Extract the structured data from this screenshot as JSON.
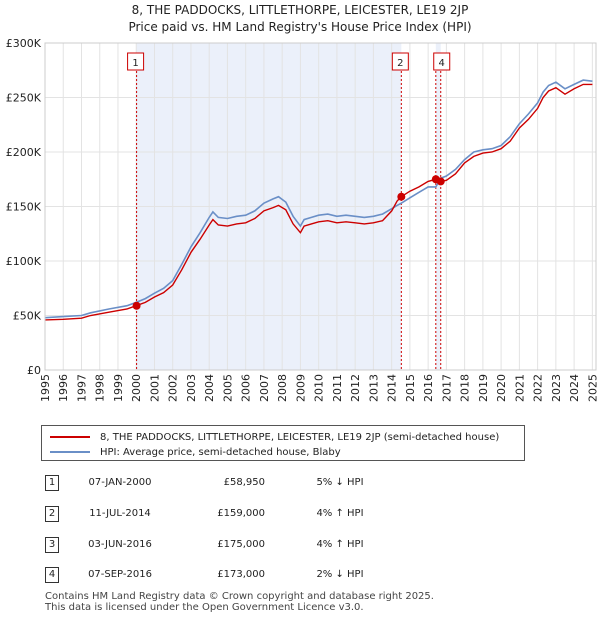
{
  "title_line1": "8, THE PADDOCKS, LITTLETHORPE, LEICESTER, LE19 2JP",
  "title_line2": "Price paid vs. HM Land Registry's House Price Index (HPI)",
  "chart_data": {
    "type": "line",
    "title": "8, THE PADDOCKS, LITTLETHORPE, LEICESTER, LE19 2JP — Price paid vs. HM Land Registry's House Price Index (HPI)",
    "xlabel": "",
    "ylabel": "",
    "xlim": [
      1995,
      2025.2
    ],
    "ylim": [
      0,
      300000
    ],
    "x_ticks": [
      1995,
      1996,
      1997,
      1998,
      1999,
      2000,
      2001,
      2002,
      2003,
      2004,
      2005,
      2006,
      2007,
      2008,
      2009,
      2010,
      2011,
      2012,
      2013,
      2014,
      2015,
      2016,
      2017,
      2018,
      2019,
      2020,
      2021,
      2022,
      2023,
      2024,
      2025
    ],
    "y_ticks": [
      0,
      50000,
      100000,
      150000,
      200000,
      250000,
      300000
    ],
    "y_tick_labels": [
      "£0",
      "£50K",
      "£100K",
      "£150K",
      "£200K",
      "£250K",
      "£300K"
    ],
    "grid": true,
    "shaded_ranges": [
      [
        2000.02,
        2014.53
      ],
      [
        2016.42,
        2016.69
      ]
    ],
    "series": [
      {
        "name": "8, THE PADDOCKS, LITTLETHORPE, LEICESTER, LE19 2JP (semi-detached house)",
        "color": "#cc0000",
        "x": [
          1995.0,
          1996.0,
          1997.0,
          1997.5,
          1998.5,
          1999.5,
          2000.0,
          2000.5,
          2001.0,
          2001.5,
          2002.0,
          2002.5,
          2003.0,
          2003.5,
          2004.0,
          2004.2,
          2004.5,
          2005.0,
          2005.5,
          2006.0,
          2006.5,
          2007.0,
          2007.5,
          2007.8,
          2008.2,
          2008.6,
          2009.0,
          2009.2,
          2009.6,
          2010.0,
          2010.5,
          2011.0,
          2011.5,
          2012.0,
          2012.5,
          2013.0,
          2013.5,
          2014.0,
          2014.3,
          2014.53,
          2015.0,
          2015.5,
          2016.0,
          2016.42,
          2016.69,
          2017.0,
          2017.5,
          2018.0,
          2018.5,
          2019.0,
          2019.5,
          2020.0,
          2020.5,
          2021.0,
          2021.5,
          2022.0,
          2022.3,
          2022.6,
          2023.0,
          2023.5,
          2024.0,
          2024.5,
          2025.0
        ],
        "values": [
          46000,
          46500,
          47500,
          50000,
          53000,
          56000,
          58950,
          62000,
          67000,
          71000,
          78000,
          92000,
          108000,
          120000,
          133000,
          138000,
          133000,
          132000,
          134000,
          135000,
          139000,
          146000,
          149000,
          151000,
          147000,
          134000,
          126000,
          132000,
          134000,
          136000,
          137000,
          135000,
          136000,
          135000,
          134000,
          135000,
          137000,
          146000,
          155000,
          159000,
          164000,
          168000,
          173000,
          175000,
          173000,
          174000,
          180000,
          190000,
          196000,
          199000,
          200000,
          203000,
          210000,
          222000,
          230000,
          240000,
          250000,
          256000,
          259000,
          253000,
          258000,
          262000,
          262000
        ]
      },
      {
        "name": "HPI: Average price, semi-detached house, Blaby",
        "color": "#6a8fc7",
        "x": [
          1995.0,
          1996.0,
          1997.0,
          1997.5,
          1998.5,
          1999.5,
          2000.0,
          2000.5,
          2001.0,
          2001.5,
          2002.0,
          2002.5,
          2003.0,
          2003.5,
          2004.0,
          2004.2,
          2004.5,
          2005.0,
          2005.5,
          2006.0,
          2006.5,
          2007.0,
          2007.5,
          2007.8,
          2008.2,
          2008.6,
          2009.0,
          2009.2,
          2009.6,
          2010.0,
          2010.5,
          2011.0,
          2011.5,
          2012.0,
          2012.5,
          2013.0,
          2013.5,
          2014.0,
          2014.3,
          2014.53,
          2015.0,
          2015.5,
          2016.0,
          2016.42,
          2016.69,
          2017.0,
          2017.5,
          2018.0,
          2018.5,
          2019.0,
          2019.5,
          2020.0,
          2020.5,
          2021.0,
          2021.5,
          2022.0,
          2022.3,
          2022.6,
          2023.0,
          2023.5,
          2024.0,
          2024.5,
          2025.0
        ],
        "values": [
          48000,
          49000,
          50000,
          52500,
          56000,
          59000,
          62000,
          65500,
          70500,
          75000,
          82000,
          97000,
          113000,
          126000,
          140000,
          145000,
          140000,
          139000,
          141000,
          142000,
          146000,
          153000,
          157000,
          159000,
          154000,
          141000,
          132000,
          138000,
          140000,
          142000,
          143000,
          141000,
          142000,
          141000,
          140000,
          141000,
          143000,
          148000,
          151000,
          153000,
          158000,
          163000,
          168000,
          168000,
          176000,
          178000,
          184000,
          193000,
          200000,
          202000,
          203000,
          206000,
          214000,
          226000,
          235000,
          245000,
          255000,
          261000,
          264000,
          258000,
          262000,
          266000,
          265000
        ]
      }
    ],
    "transactions": [
      {
        "label": "1",
        "x": 2000.02,
        "value": 58950
      },
      {
        "label": "2",
        "x": 2014.53,
        "value": 159000
      },
      {
        "label": "3",
        "x": 2016.42,
        "value": 175000
      },
      {
        "label": "4",
        "x": 2016.69,
        "value": 173000
      }
    ],
    "marker_labels_shown": [
      "1",
      "2",
      "4"
    ]
  },
  "legend": {
    "property_label": "8, THE PADDOCKS, LITTLETHORPE, LEICESTER, LE19 2JP (semi-detached house)",
    "hpi_label": "HPI: Average price, semi-detached house, Blaby",
    "property_color": "#cc0000",
    "hpi_color": "#6a8fc7"
  },
  "table": [
    {
      "num": "1",
      "date": "07-JAN-2000",
      "price": "£58,950",
      "hpi": "5% ↓ HPI"
    },
    {
      "num": "2",
      "date": "11-JUL-2014",
      "price": "£159,000",
      "hpi": "4% ↑ HPI"
    },
    {
      "num": "3",
      "date": "03-JUN-2016",
      "price": "£175,000",
      "hpi": "4% ↑ HPI"
    },
    {
      "num": "4",
      "date": "07-SEP-2016",
      "price": "£173,000",
      "hpi": "2% ↓ HPI"
    }
  ],
  "footer": {
    "line1": "Contains HM Land Registry data © Crown copyright and database right 2025.",
    "line2": "This data is licensed under the Open Government Licence v3.0."
  }
}
